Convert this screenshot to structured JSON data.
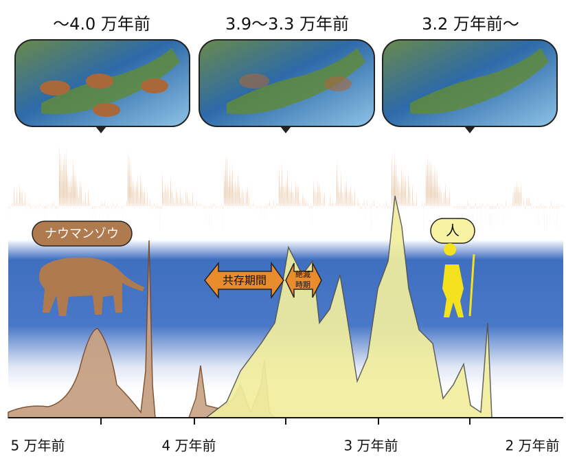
{
  "panels": [
    {
      "title": "〜4.0 万年前"
    },
    {
      "title": "3.9〜3.3 万年前"
    },
    {
      "title": "3.2 万年前〜"
    }
  ],
  "labels": {
    "elephant": "ナウマンゾウ",
    "human": "人",
    "coexistence": "共存期間",
    "extinction": [
      "絶滅",
      "時期"
    ]
  },
  "axis": {
    "ticks": [
      "5 万年前",
      "4 万年前",
      "3 万年前",
      "2 万年前"
    ]
  }
}
